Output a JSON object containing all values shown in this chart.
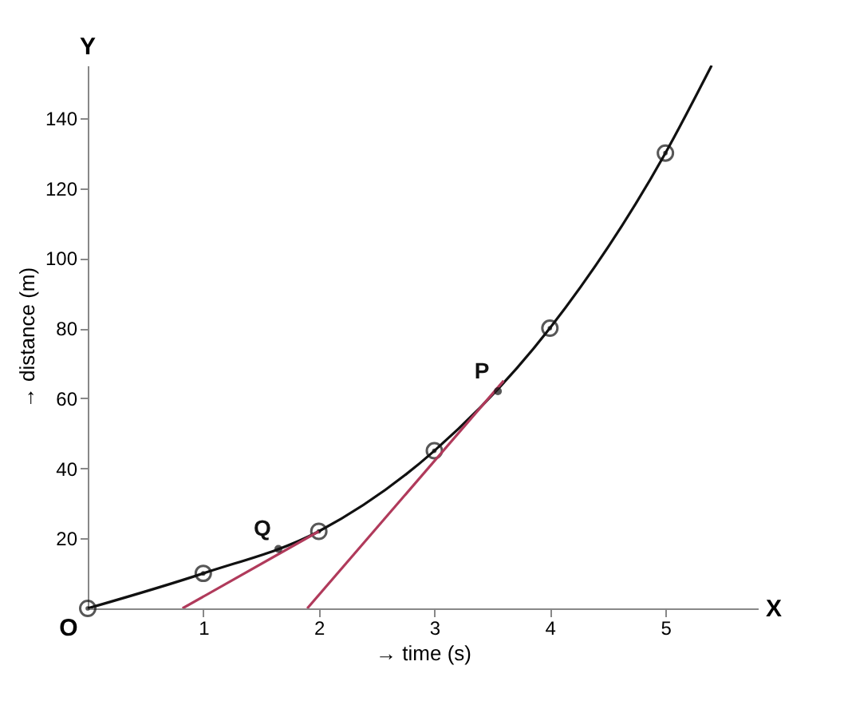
{
  "chart_data": {
    "type": "line",
    "xlabel": "→ time (s)",
    "ylabel": "→ distance (m)",
    "xlim": [
      0,
      5.8
    ],
    "xticks": [
      1,
      2,
      3,
      4,
      5
    ],
    "ylim": [
      0,
      155
    ],
    "yticks": [
      20,
      40,
      60,
      80,
      100,
      120,
      140
    ],
    "grid": false,
    "series": [
      {
        "color": "#111111",
        "marker": "none",
        "x": [
          0,
          1,
          2,
          3,
          4,
          5,
          5.4
        ],
        "values": [
          0,
          10,
          22,
          45,
          80,
          130,
          155
        ]
      },
      {
        "type": "scatter",
        "color": "#111111",
        "marker": "circle",
        "x": [
          0,
          1,
          2,
          3,
          4,
          5
        ],
        "values": [
          0,
          10,
          22,
          45,
          80,
          130
        ]
      },
      {
        "type": "line",
        "color": "#b03a5b",
        "marker": "none",
        "x": [
          0.82,
          2.0
        ],
        "values": [
          0,
          22
        ]
      },
      {
        "type": "line",
        "color": "#b03a5b",
        "marker": "none",
        "x": [
          1.9,
          3.6
        ],
        "values": [
          0,
          65
        ]
      },
      {
        "type": "scatter",
        "name": "Q",
        "color": "#111111",
        "marker": "circle",
        "x": [
          1.65
        ],
        "values": [
          17
        ]
      },
      {
        "type": "scatter",
        "name": "P",
        "color": "#111111",
        "marker": "circle",
        "x": [
          3.55
        ],
        "values": [
          62
        ]
      }
    ],
    "annotations": [
      "O",
      "X",
      "Y"
    ]
  }
}
